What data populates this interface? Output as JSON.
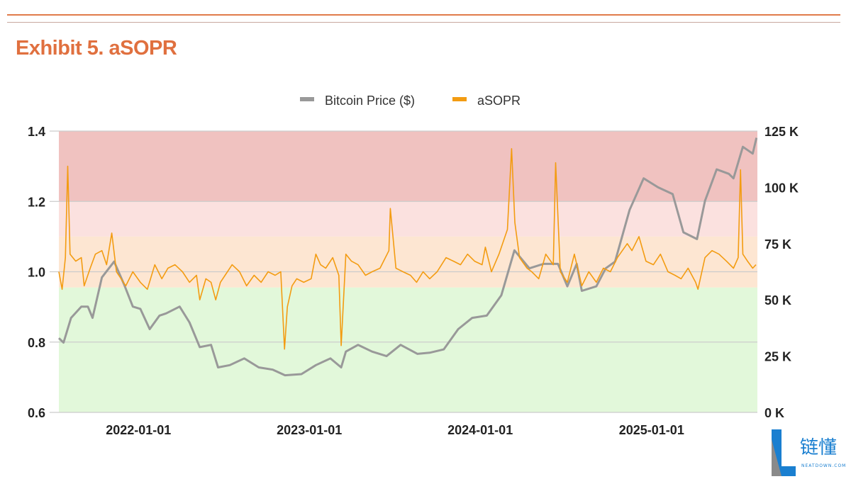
{
  "header": {
    "title": "Exhibit 5. aSOPR"
  },
  "watermark": {
    "brand_cn": "链懂",
    "brand_en": "NEATDOWN.COM"
  },
  "chart_data": {
    "type": "line",
    "title": "Exhibit 5. aSOPR",
    "legend_position": "top",
    "legend": [
      {
        "name": "Bitcoin Price ($)",
        "color": "#999999"
      },
      {
        "name": "aSOPR",
        "color": "#f39c12"
      }
    ],
    "x_range": [
      "2021-07-15",
      "2025-08-15"
    ],
    "x_ticks": [
      "2022-01-01",
      "2023-01-01",
      "2024-01-01",
      "2025-01-01"
    ],
    "y_left": {
      "range": [
        0.6,
        1.4
      ],
      "ticks": [
        "0.6",
        "0.8",
        "1.0",
        "1.2",
        "1.4"
      ],
      "tick_values": [
        0.6,
        0.8,
        1.0,
        1.2,
        1.4
      ]
    },
    "y_right": {
      "range": [
        0,
        125000
      ],
      "ticks": [
        "0 K",
        "25 K",
        "50 K",
        "75 K",
        "100 K",
        "125 K"
      ],
      "tick_values": [
        0,
        25000,
        50000,
        75000,
        100000,
        125000
      ]
    },
    "grid": true,
    "bands": [
      {
        "from": 1.2,
        "to": 1.4,
        "color": "#f0c2c0"
      },
      {
        "from": 1.1,
        "to": 1.2,
        "color": "#fbe1df"
      },
      {
        "from": 0.955,
        "to": 1.1,
        "color": "#fde6d2"
      },
      {
        "from": 0.6,
        "to": 0.955,
        "color": "#e2f8da"
      }
    ],
    "series": [
      {
        "name": "Bitcoin Price ($)",
        "axis": "right",
        "color": "#999999",
        "points": [
          [
            "2021-07-15",
            33000
          ],
          [
            "2021-07-25",
            31000
          ],
          [
            "2021-08-10",
            42000
          ],
          [
            "2021-09-01",
            47000
          ],
          [
            "2021-09-15",
            47000
          ],
          [
            "2021-09-25",
            42000
          ],
          [
            "2021-10-15",
            60000
          ],
          [
            "2021-11-10",
            67000
          ],
          [
            "2021-12-01",
            57000
          ],
          [
            "2021-12-20",
            47000
          ],
          [
            "2022-01-05",
            46000
          ],
          [
            "2022-01-25",
            37000
          ],
          [
            "2022-02-15",
            43000
          ],
          [
            "2022-03-01",
            44000
          ],
          [
            "2022-03-30",
            47000
          ],
          [
            "2022-04-20",
            40000
          ],
          [
            "2022-05-12",
            29000
          ],
          [
            "2022-06-05",
            30000
          ],
          [
            "2022-06-20",
            20000
          ],
          [
            "2022-07-15",
            21000
          ],
          [
            "2022-08-15",
            24000
          ],
          [
            "2022-09-15",
            20000
          ],
          [
            "2022-10-15",
            19000
          ],
          [
            "2022-11-10",
            16500
          ],
          [
            "2022-12-15",
            17000
          ],
          [
            "2023-01-15",
            21000
          ],
          [
            "2023-02-15",
            24000
          ],
          [
            "2023-03-10",
            20000
          ],
          [
            "2023-03-20",
            27000
          ],
          [
            "2023-04-15",
            30000
          ],
          [
            "2023-05-15",
            27000
          ],
          [
            "2023-06-15",
            25000
          ],
          [
            "2023-07-15",
            30000
          ],
          [
            "2023-08-20",
            26000
          ],
          [
            "2023-09-15",
            26500
          ],
          [
            "2023-10-15",
            28000
          ],
          [
            "2023-11-15",
            37000
          ],
          [
            "2023-12-15",
            42000
          ],
          [
            "2024-01-15",
            43000
          ],
          [
            "2024-02-15",
            52000
          ],
          [
            "2024-03-14",
            72000
          ],
          [
            "2024-04-15",
            64000
          ],
          [
            "2024-05-15",
            66000
          ],
          [
            "2024-06-15",
            66000
          ],
          [
            "2024-07-05",
            56000
          ],
          [
            "2024-07-25",
            66000
          ],
          [
            "2024-08-05",
            54000
          ],
          [
            "2024-09-05",
            56000
          ],
          [
            "2024-09-25",
            64000
          ],
          [
            "2024-10-15",
            67000
          ],
          [
            "2024-11-15",
            90000
          ],
          [
            "2024-12-15",
            104000
          ],
          [
            "2025-01-15",
            100000
          ],
          [
            "2025-02-15",
            97000
          ],
          [
            "2025-03-10",
            80000
          ],
          [
            "2025-04-08",
            77000
          ],
          [
            "2025-04-25",
            94000
          ],
          [
            "2025-05-20",
            108000
          ],
          [
            "2025-06-15",
            106000
          ],
          [
            "2025-06-25",
            104000
          ],
          [
            "2025-07-15",
            118000
          ],
          [
            "2025-08-05",
            115000
          ],
          [
            "2025-08-13",
            122000
          ]
        ]
      },
      {
        "name": "aSOPR",
        "axis": "left",
        "color": "#f39c12",
        "points": [
          [
            "2021-07-15",
            1.0
          ],
          [
            "2021-07-22",
            0.95
          ],
          [
            "2021-07-29",
            1.04
          ],
          [
            "2021-08-03",
            1.3
          ],
          [
            "2021-08-08",
            1.05
          ],
          [
            "2021-08-20",
            1.03
          ],
          [
            "2021-09-01",
            1.04
          ],
          [
            "2021-09-07",
            0.96
          ],
          [
            "2021-09-20",
            1.01
          ],
          [
            "2021-10-01",
            1.05
          ],
          [
            "2021-10-15",
            1.06
          ],
          [
            "2021-10-25",
            1.02
          ],
          [
            "2021-11-05",
            1.11
          ],
          [
            "2021-11-15",
            1.0
          ],
          [
            "2021-11-25",
            0.98
          ],
          [
            "2021-12-05",
            0.96
          ],
          [
            "2021-12-20",
            1.0
          ],
          [
            "2022-01-05",
            0.97
          ],
          [
            "2022-01-20",
            0.95
          ],
          [
            "2022-02-05",
            1.02
          ],
          [
            "2022-02-20",
            0.98
          ],
          [
            "2022-03-05",
            1.01
          ],
          [
            "2022-03-20",
            1.02
          ],
          [
            "2022-04-05",
            1.0
          ],
          [
            "2022-04-20",
            0.97
          ],
          [
            "2022-05-05",
            0.99
          ],
          [
            "2022-05-12",
            0.92
          ],
          [
            "2022-05-25",
            0.98
          ],
          [
            "2022-06-05",
            0.97
          ],
          [
            "2022-06-15",
            0.92
          ],
          [
            "2022-06-25",
            0.97
          ],
          [
            "2022-07-05",
            0.99
          ],
          [
            "2022-07-20",
            1.02
          ],
          [
            "2022-08-05",
            1.0
          ],
          [
            "2022-08-20",
            0.96
          ],
          [
            "2022-09-05",
            0.99
          ],
          [
            "2022-09-20",
            0.97
          ],
          [
            "2022-10-05",
            1.0
          ],
          [
            "2022-10-20",
            0.99
          ],
          [
            "2022-11-01",
            1.0
          ],
          [
            "2022-11-09",
            0.78
          ],
          [
            "2022-11-15",
            0.9
          ],
          [
            "2022-11-25",
            0.96
          ],
          [
            "2022-12-05",
            0.98
          ],
          [
            "2022-12-20",
            0.97
          ],
          [
            "2023-01-05",
            0.98
          ],
          [
            "2023-01-15",
            1.05
          ],
          [
            "2023-01-25",
            1.02
          ],
          [
            "2023-02-05",
            1.01
          ],
          [
            "2023-02-20",
            1.04
          ],
          [
            "2023-03-05",
            0.99
          ],
          [
            "2023-03-10",
            0.79
          ],
          [
            "2023-03-20",
            1.05
          ],
          [
            "2023-04-01",
            1.03
          ],
          [
            "2023-04-15",
            1.02
          ],
          [
            "2023-05-01",
            0.99
          ],
          [
            "2023-05-15",
            1.0
          ],
          [
            "2023-06-01",
            1.01
          ],
          [
            "2023-06-20",
            1.06
          ],
          [
            "2023-06-23",
            1.18
          ],
          [
            "2023-07-05",
            1.01
          ],
          [
            "2023-07-20",
            1.0
          ],
          [
            "2023-08-05",
            0.99
          ],
          [
            "2023-08-18",
            0.97
          ],
          [
            "2023-09-01",
            1.0
          ],
          [
            "2023-09-15",
            0.98
          ],
          [
            "2023-10-01",
            1.0
          ],
          [
            "2023-10-20",
            1.04
          ],
          [
            "2023-11-05",
            1.03
          ],
          [
            "2023-11-20",
            1.02
          ],
          [
            "2023-12-05",
            1.05
          ],
          [
            "2023-12-20",
            1.03
          ],
          [
            "2024-01-05",
            1.02
          ],
          [
            "2024-01-12",
            1.07
          ],
          [
            "2024-01-25",
            1.0
          ],
          [
            "2024-02-10",
            1.05
          ],
          [
            "2024-02-28",
            1.12
          ],
          [
            "2024-03-08",
            1.35
          ],
          [
            "2024-03-15",
            1.14
          ],
          [
            "2024-03-25",
            1.04
          ],
          [
            "2024-04-10",
            1.01
          ],
          [
            "2024-04-20",
            1.0
          ],
          [
            "2024-05-05",
            0.98
          ],
          [
            "2024-05-20",
            1.05
          ],
          [
            "2024-06-05",
            1.02
          ],
          [
            "2024-06-10",
            1.31
          ],
          [
            "2024-06-20",
            1.0
          ],
          [
            "2024-07-05",
            0.97
          ],
          [
            "2024-07-20",
            1.05
          ],
          [
            "2024-08-05",
            0.96
          ],
          [
            "2024-08-20",
            1.0
          ],
          [
            "2024-09-05",
            0.97
          ],
          [
            "2024-09-20",
            1.01
          ],
          [
            "2024-10-05",
            1.0
          ],
          [
            "2024-10-20",
            1.04
          ],
          [
            "2024-11-10",
            1.08
          ],
          [
            "2024-11-20",
            1.06
          ],
          [
            "2024-12-05",
            1.1
          ],
          [
            "2024-12-20",
            1.03
          ],
          [
            "2025-01-05",
            1.02
          ],
          [
            "2025-01-20",
            1.05
          ],
          [
            "2025-02-05",
            1.0
          ],
          [
            "2025-02-20",
            0.99
          ],
          [
            "2025-03-05",
            0.98
          ],
          [
            "2025-03-20",
            1.01
          ],
          [
            "2025-04-05",
            0.97
          ],
          [
            "2025-04-10",
            0.95
          ],
          [
            "2025-04-25",
            1.04
          ],
          [
            "2025-05-10",
            1.06
          ],
          [
            "2025-05-25",
            1.05
          ],
          [
            "2025-06-10",
            1.03
          ],
          [
            "2025-06-25",
            1.01
          ],
          [
            "2025-07-05",
            1.04
          ],
          [
            "2025-07-10",
            1.29
          ],
          [
            "2025-07-15",
            1.05
          ],
          [
            "2025-07-25",
            1.03
          ],
          [
            "2025-08-05",
            1.01
          ],
          [
            "2025-08-12",
            1.02
          ]
        ]
      }
    ]
  }
}
